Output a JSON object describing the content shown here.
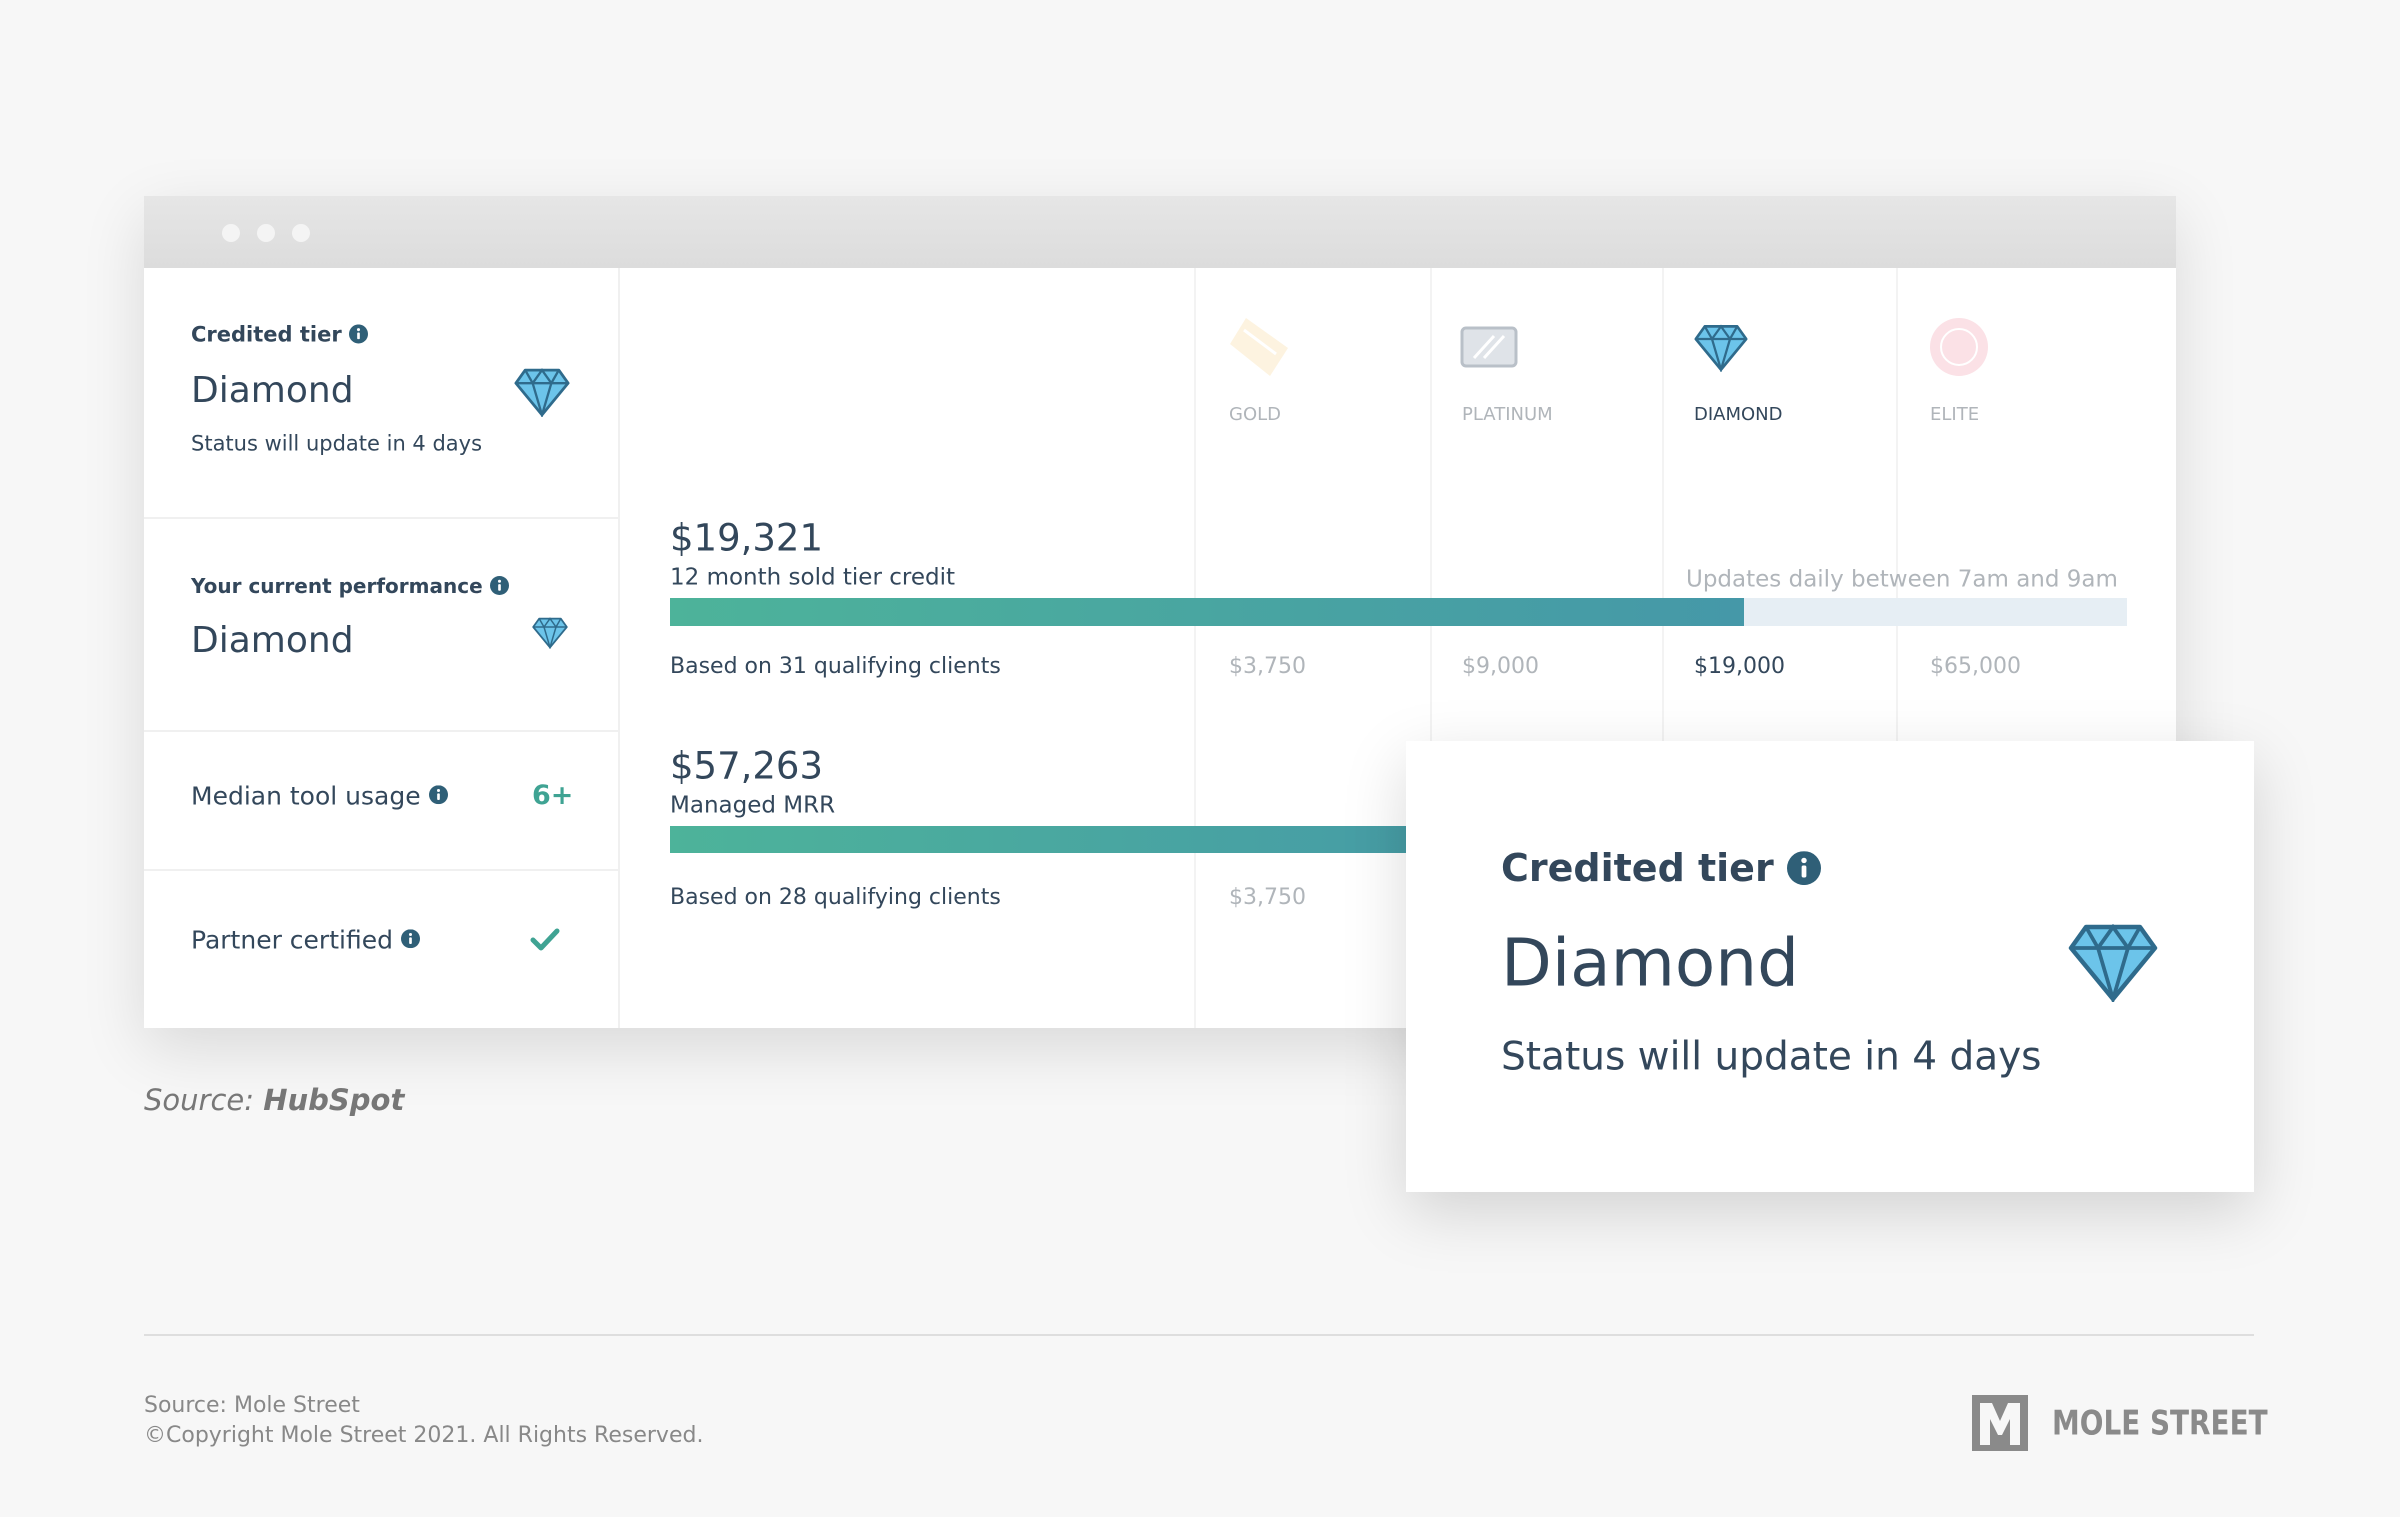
{
  "left_panel": {
    "credited_tier": {
      "label": "Credited tier",
      "value": "Diamond",
      "status": "Status will update in 4 days"
    },
    "current_performance": {
      "label": "Your current performance",
      "value": "Diamond"
    },
    "median_tool_usage": {
      "label": "Median tool usage",
      "value": "6+"
    },
    "partner_certified": {
      "label": "Partner certified"
    }
  },
  "tiers": [
    "GOLD",
    "PLATINUM",
    "DIAMOND",
    "ELITE"
  ],
  "update_note": "Updates daily between 7am and 9am",
  "metrics": [
    {
      "amount": "$19,321",
      "label": "12 month sold tier credit",
      "basis": "Based on 31 qualifying clients",
      "thresholds": [
        "$3,750",
        "$9,000",
        "$19,000",
        "$65,000"
      ]
    },
    {
      "amount": "$57,263",
      "label": "Managed MRR",
      "basis": "Based on 28 qualifying clients",
      "thresholds": [
        "$3,750"
      ]
    }
  ],
  "popup": {
    "label": "Credited tier",
    "value": "Diamond",
    "status": "Status will update in 4 days"
  },
  "source": {
    "prefix": "Source:",
    "name": "HubSpot"
  },
  "footer": {
    "source": "Source: Mole Street",
    "copyright": "©Copyright Mole Street 2021. All Rights Reserved.",
    "logo": "MOLE STREET"
  }
}
